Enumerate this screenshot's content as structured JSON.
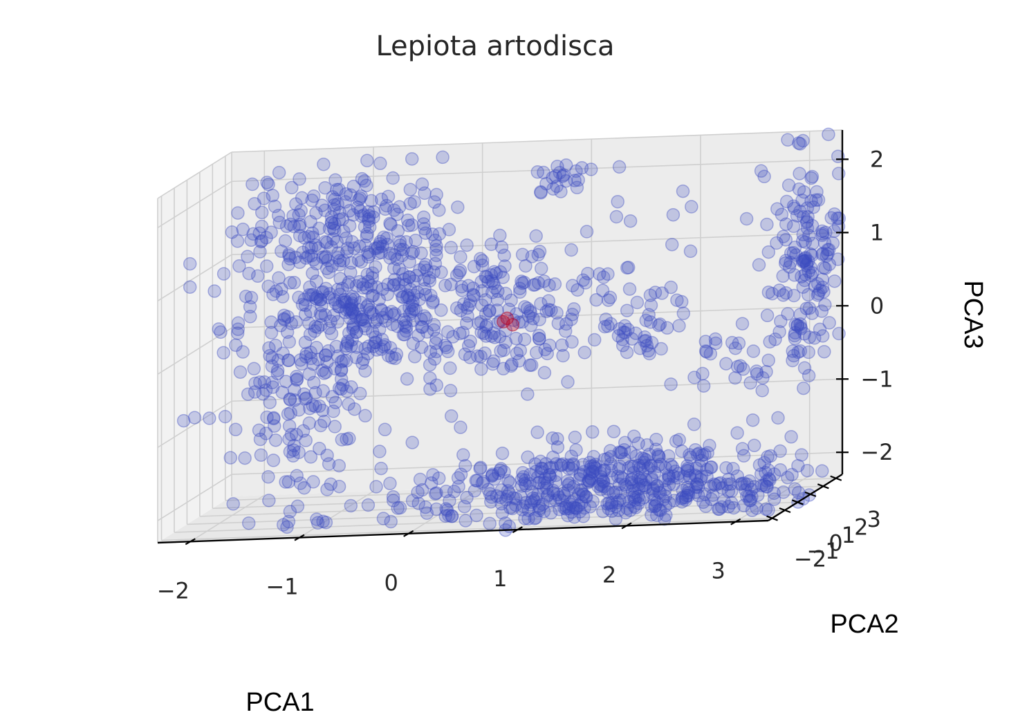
{
  "chart_data": {
    "type": "scatter",
    "projection": "3d",
    "title": "Lepiota artodisca",
    "xlabel": "PCA1",
    "ylabel": "PCA2",
    "zlabel": "PCA3",
    "xlim": [
      -2.3,
      3.3
    ],
    "ylim": [
      -2.3,
      3.5
    ],
    "zlim": [
      -2.3,
      2.4
    ],
    "xticks": [
      -2,
      -1,
      0,
      1,
      2,
      3
    ],
    "yticks": [
      -2,
      -1,
      0,
      1,
      2,
      3
    ],
    "zticks": [
      -2,
      -1,
      0,
      1,
      2
    ],
    "xtick_labels": [
      "−2",
      "−1",
      "0",
      "1",
      "2",
      "3"
    ],
    "ytick_labels": [
      "−2",
      "−1",
      "0",
      "1",
      "2",
      "3"
    ],
    "ztick_labels": [
      "−2",
      "−1",
      "0",
      "1",
      "2"
    ],
    "grid": true,
    "colors": {
      "main": "#3b4cc0",
      "highlight": "#b40426"
    },
    "series": [
      {
        "color": "#3b4cc0",
        "alpha": 0.25,
        "clusters": [
          {
            "center": [
              -1.0,
              1.4,
              1.6
            ],
            "spread": [
              0.5,
              0.4,
              0.35
            ],
            "count": 170
          },
          {
            "center": [
              -0.8,
              1.0,
              0.5
            ],
            "spread": [
              0.5,
              0.5,
              0.5
            ],
            "count": 260
          },
          {
            "center": [
              0.4,
              1.2,
              0.2
            ],
            "spread": [
              0.4,
              0.4,
              0.5
            ],
            "count": 160
          },
          {
            "center": [
              -1.2,
              -0.3,
              -0.4
            ],
            "spread": [
              0.35,
              0.25,
              0.9
            ],
            "count": 190
          },
          {
            "center": [
              0.9,
              2.0,
              2.0
            ],
            "spread": [
              0.12,
              0.1,
              0.1
            ],
            "count": 22
          },
          {
            "center": [
              1.7,
              0.8,
              0.1
            ],
            "spread": [
              0.25,
              0.2,
              0.3
            ],
            "count": 45
          },
          {
            "center": [
              2.6,
              1.8,
              -0.6
            ],
            "spread": [
              0.25,
              0.2,
              0.3
            ],
            "count": 30
          },
          {
            "center": [
              3.0,
              3.2,
              0.6
            ],
            "spread": [
              0.15,
              0.15,
              0.8
            ],
            "count": 150
          },
          {
            "center": [
              1.6,
              0.1,
              -2.0
            ],
            "spread": [
              0.9,
              0.9,
              0.3
            ],
            "count": 500
          },
          {
            "center": [
              1.3,
              1.6,
              0.6
            ],
            "spread": [
              0.7,
              0.8,
              0.7
            ],
            "count": 28
          }
        ]
      },
      {
        "color": "#b40426",
        "alpha": 0.35,
        "points": [
          [
            0.42,
            1.55,
            0.15
          ],
          [
            0.5,
            1.6,
            0.1
          ],
          [
            0.46,
            1.5,
            0.2
          ]
        ]
      }
    ]
  }
}
